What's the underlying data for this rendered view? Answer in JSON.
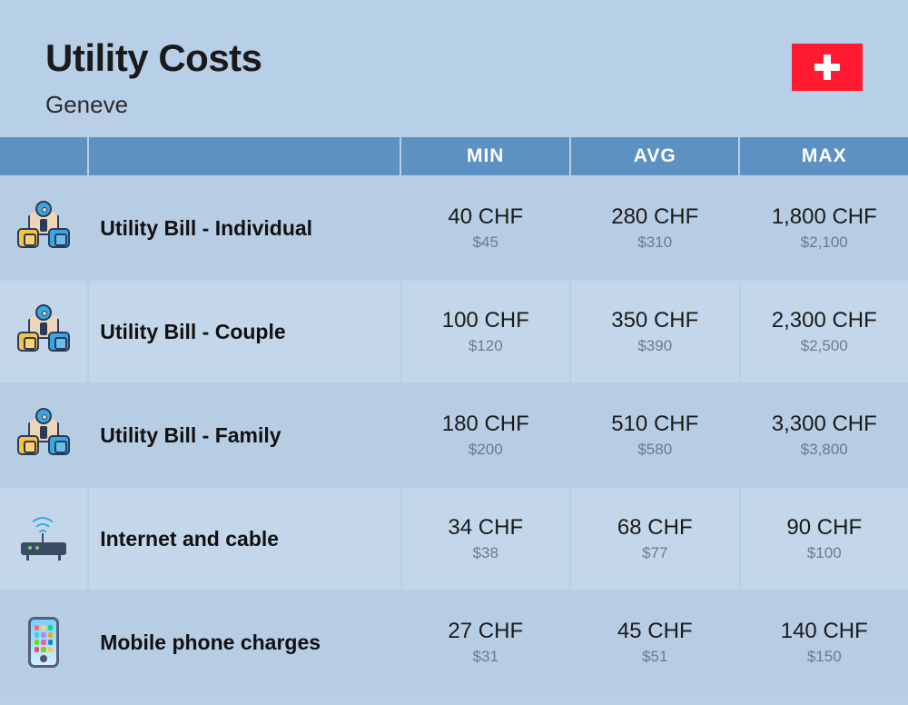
{
  "header": {
    "title": "Utility Costs",
    "subtitle": "Geneve",
    "flag_bg": "#ff1a30",
    "flag_cross": "#ffffff"
  },
  "columns": {
    "min": "MIN",
    "avg": "AVG",
    "max": "MAX"
  },
  "colors": {
    "page_bg": "#b7d0e8",
    "header_cell_bg": "#5c91c2",
    "header_cell_text": "#ffffff",
    "row_alt_a": "#b7cde4",
    "row_alt_b": "#c4d7ea",
    "value_main": "#1a1a1a",
    "value_sub": "#6e7a88",
    "label_text": "#111111"
  },
  "rows": [
    {
      "icon": "utility",
      "label": "Utility Bill - Individual",
      "min": {
        "chf": "40 CHF",
        "usd": "$45"
      },
      "avg": {
        "chf": "280 CHF",
        "usd": "$310"
      },
      "max": {
        "chf": "1,800 CHF",
        "usd": "$2,100"
      }
    },
    {
      "icon": "utility",
      "label": "Utility Bill - Couple",
      "min": {
        "chf": "100 CHF",
        "usd": "$120"
      },
      "avg": {
        "chf": "350 CHF",
        "usd": "$390"
      },
      "max": {
        "chf": "2,300 CHF",
        "usd": "$2,500"
      }
    },
    {
      "icon": "utility",
      "label": "Utility Bill - Family",
      "min": {
        "chf": "180 CHF",
        "usd": "$200"
      },
      "avg": {
        "chf": "510 CHF",
        "usd": "$580"
      },
      "max": {
        "chf": "3,300 CHF",
        "usd": "$3,800"
      }
    },
    {
      "icon": "router",
      "label": "Internet and cable",
      "min": {
        "chf": "34 CHF",
        "usd": "$38"
      },
      "avg": {
        "chf": "68 CHF",
        "usd": "$77"
      },
      "max": {
        "chf": "90 CHF",
        "usd": "$100"
      }
    },
    {
      "icon": "phone",
      "label": "Mobile phone charges",
      "min": {
        "chf": "27 CHF",
        "usd": "$31"
      },
      "avg": {
        "chf": "45 CHF",
        "usd": "$51"
      },
      "max": {
        "chf": "140 CHF",
        "usd": "$150"
      }
    }
  ]
}
